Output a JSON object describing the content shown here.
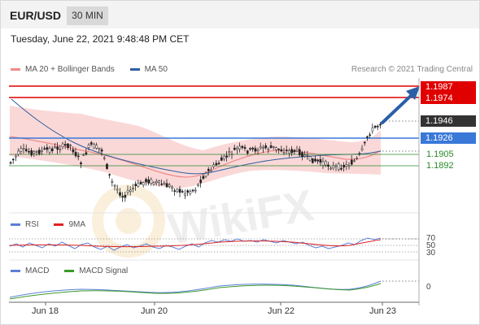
{
  "header": {
    "pair": "EUR/USD",
    "timeframe": "30 MIN"
  },
  "datetime": "Tuesday, June 22, 2021 9:48:48 PM CET",
  "main_legend": [
    {
      "label": "MA 20 + Bollinger Bands",
      "color": "#f08a8a"
    },
    {
      "label": "MA 50",
      "color": "#2f5f9e"
    }
  ],
  "credit": "Research © 2021 Trading Central",
  "price_levels": [
    {
      "value": "1.1987",
      "style": "resistance-red",
      "color": "#e00000"
    },
    {
      "value": "1.1974",
      "style": "resistance-red",
      "color": "#e00000"
    },
    {
      "value": "1.1946",
      "style": "last-price",
      "color": "#333333"
    },
    {
      "value": "1.1926",
      "style": "pivot-blue",
      "color": "#3a78d8"
    },
    {
      "value": "1.1905",
      "style": "support-green",
      "color": "#2a8a2a"
    },
    {
      "value": "1.1892",
      "style": "support-green",
      "color": "#2a8a2a"
    }
  ],
  "rsi_legend": [
    {
      "label": "RSI",
      "color": "#5b7fd8"
    },
    {
      "label": "9MA",
      "color": "#dd2222"
    }
  ],
  "rsi_levels": [
    "70",
    "50",
    "30"
  ],
  "macd_legend": [
    {
      "label": "MACD",
      "color": "#5b7fd8"
    },
    {
      "label": "MACD Signal",
      "color": "#3a9a2a"
    }
  ],
  "macd_levels": [
    "0"
  ],
  "x_axis": [
    "Jun 18",
    "Jun 20",
    "Jun 22",
    "Jun 23"
  ],
  "watermark": "WikiFX"
}
